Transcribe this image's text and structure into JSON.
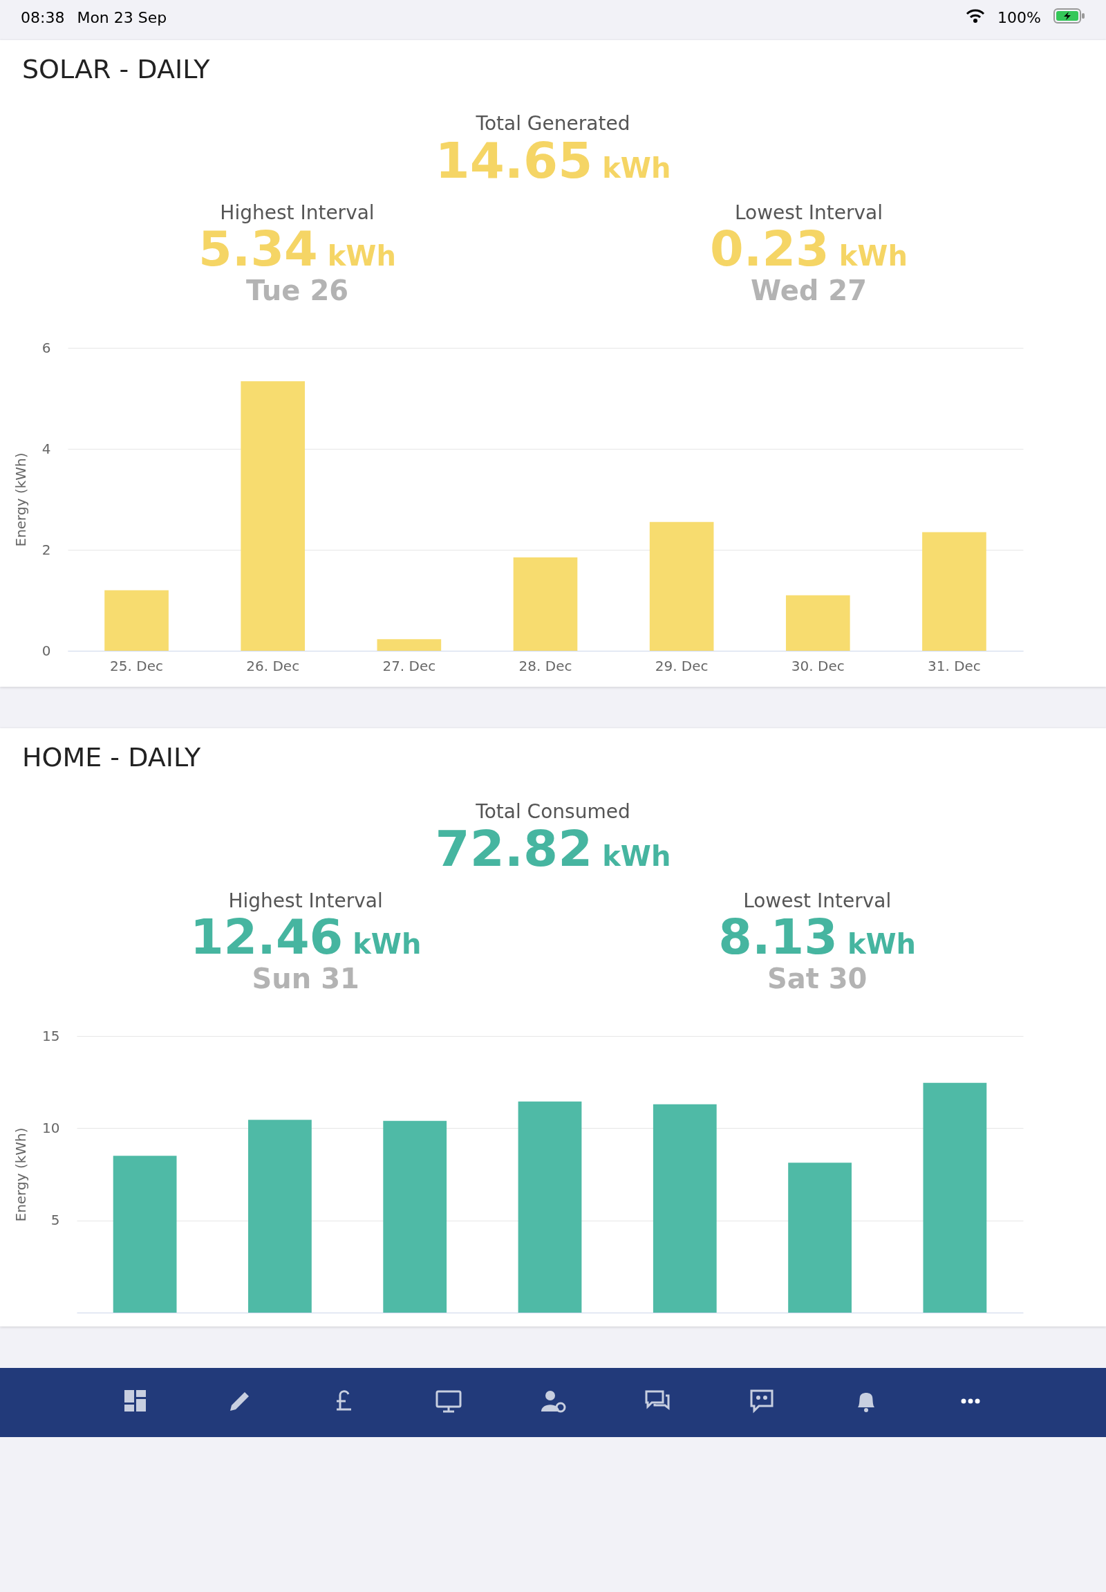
{
  "chart_data": [
    {
      "type": "bar",
      "title": "SOLAR - DAILY",
      "ylabel": "Energy (kWh)",
      "categories": [
        "25. Dec",
        "26. Dec",
        "27. Dec",
        "28. Dec",
        "29. Dec",
        "30. Dec",
        "31. Dec"
      ],
      "values": [
        1.2,
        5.34,
        0.23,
        1.85,
        2.55,
        1.1,
        2.35
      ],
      "color": "#f7dc6f",
      "ylim": [
        0,
        6
      ],
      "yticks": [
        0,
        2,
        4,
        6
      ],
      "grid": "y",
      "annotations": [
        "Total Generated",
        "14.65 kWh",
        "Highest Interval",
        "5.34 kWh",
        "Tue 26",
        "Lowest Interval",
        "0.23 kWh",
        "Wed 27",
        "08:38",
        "Mon 23 Sep",
        "100%"
      ]
    },
    {
      "type": "bar",
      "title": "HOME - DAILY",
      "ylabel": "Energy (kWh)",
      "categories": [
        null,
        null,
        null,
        null,
        null,
        null,
        null
      ],
      "values": [
        8.5,
        10.45,
        10.4,
        11.45,
        11.3,
        8.13,
        12.46
      ],
      "color": "#4fbaa6",
      "ylim": [
        0,
        15
      ],
      "yticks": [
        5,
        10,
        15
      ],
      "grid": "y",
      "tick_labels": "y",
      "annotations": [
        "Total Consumed",
        "72.82 kWh",
        "Highest Interval",
        "12.46 kWh",
        "Sun 31",
        "Lowest Interval",
        "8.13 kWh",
        "Sat 30"
      ]
    }
  ]
}
